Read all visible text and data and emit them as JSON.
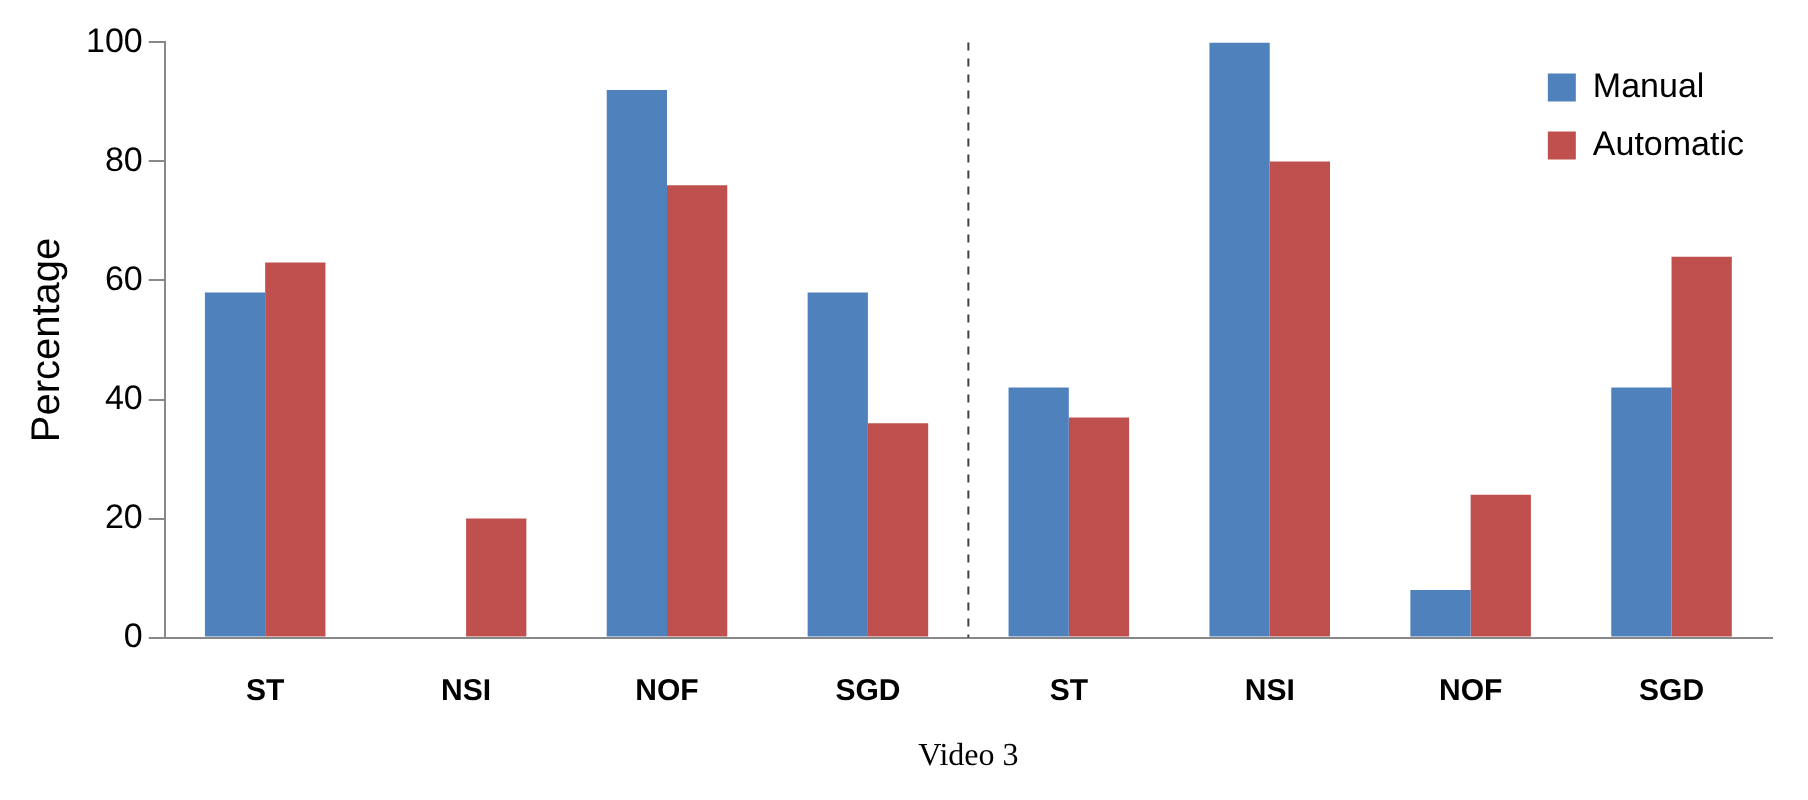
{
  "chart_data": {
    "type": "bar",
    "xlabel": "Video 3",
    "ylabel": "Percentage",
    "categories": [
      "ST",
      "NSI",
      "NOF",
      "SGD",
      "ST",
      "NSI",
      "NOF",
      "SGD"
    ],
    "series": [
      {
        "name": "Manual",
        "color": "#4f81bd",
        "values": [
          58,
          0,
          92,
          58,
          42,
          100,
          8,
          42
        ]
      },
      {
        "name": "Automatic",
        "color": "#c0504d",
        "values": [
          63,
          20,
          76,
          36,
          37,
          80,
          24,
          64
        ]
      }
    ],
    "ylim": [
      0,
      100
    ],
    "yticks": [
      0,
      20,
      40,
      60,
      80,
      100
    ],
    "grid": false,
    "legend": "top right"
  }
}
